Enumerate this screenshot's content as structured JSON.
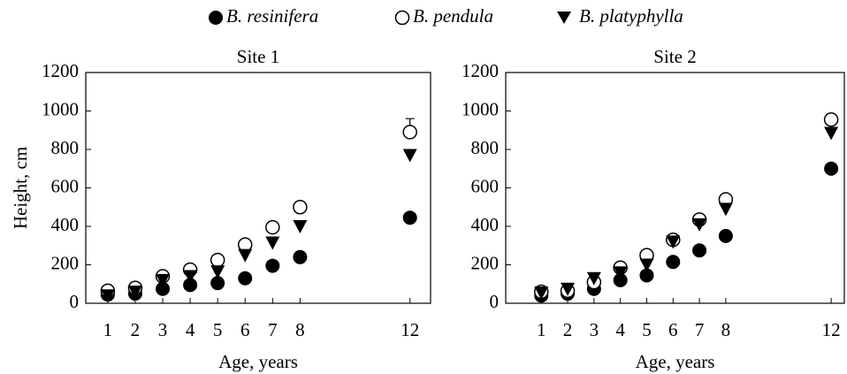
{
  "chart_data": [
    {
      "type": "scatter",
      "title": "Site 1",
      "xlabel": "Age, years",
      "ylabel": "Height, cm",
      "x": [
        1,
        2,
        3,
        4,
        5,
        6,
        7,
        8,
        12
      ],
      "xlim": [
        0.2,
        12.75
      ],
      "xticks": [
        1,
        2,
        3,
        4,
        5,
        6,
        7,
        8,
        12
      ],
      "ylim": [
        0,
        1200
      ],
      "yticks": [
        0,
        200,
        400,
        600,
        800,
        1000,
        1200
      ],
      "series": [
        {
          "name": "B. resinifera",
          "marker": "filled-circle",
          "color": "#000000",
          "values": [
            45,
            50,
            75,
            95,
            105,
            130,
            195,
            240,
            445
          ]
        },
        {
          "name": "B. pendula",
          "marker": "open-circle",
          "color": "#000000",
          "values": [
            65,
            80,
            140,
            175,
            225,
            305,
            395,
            500,
            890
          ],
          "errors": [
            null,
            null,
            null,
            null,
            null,
            null,
            null,
            null,
            70
          ]
        },
        {
          "name": "B. platyphylla",
          "marker": "triangle-down",
          "color": "#000000",
          "values": [
            40,
            60,
            120,
            140,
            165,
            250,
            315,
            400,
            770
          ]
        }
      ]
    },
    {
      "type": "scatter",
      "title": "Site 2",
      "xlabel": "Age, years",
      "x": [
        1,
        2,
        3,
        4,
        5,
        6,
        7,
        8,
        12
      ],
      "xlim": [
        -0.35,
        12.5
      ],
      "xticks": [
        1,
        2,
        3,
        4,
        5,
        6,
        7,
        8,
        12
      ],
      "ylim": [
        0,
        1200
      ],
      "yticks": [
        0,
        200,
        400,
        600,
        800,
        1000,
        1200
      ],
      "series": [
        {
          "marker": "filled-circle",
          "color": "#000000",
          "values": [
            40,
            50,
            75,
            120,
            145,
            215,
            275,
            350,
            700
          ]
        },
        {
          "marker": "open-circle",
          "color": "#000000",
          "values": [
            60,
            65,
            110,
            185,
            250,
            330,
            435,
            540,
            955
          ]
        },
        {
          "marker": "triangle-down",
          "color": "#000000",
          "values": [
            55,
            75,
            130,
            160,
            200,
            320,
            410,
            490,
            885
          ]
        }
      ]
    }
  ]
}
